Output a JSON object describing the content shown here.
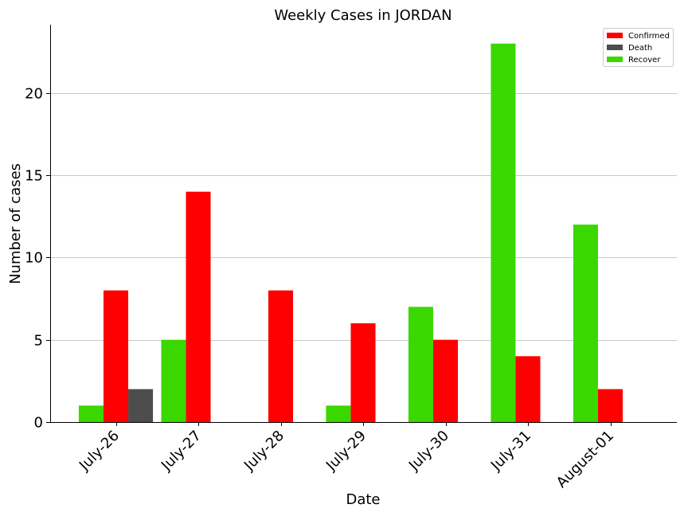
{
  "chart_data": {
    "type": "bar",
    "title": "Weekly Cases in JORDAN",
    "xlabel": "Date",
    "ylabel": "Number of cases",
    "categories": [
      "July-26",
      "July-27",
      "July-28",
      "July-29",
      "July-30",
      "July-31",
      "August-01"
    ],
    "series": [
      {
        "name": "Recover",
        "color": "#3bd800",
        "values": [
          1,
          5,
          0,
          1,
          7,
          23,
          12
        ]
      },
      {
        "name": "Confirmed",
        "color": "#ff0000",
        "values": [
          8,
          14,
          8,
          6,
          5,
          4,
          2
        ]
      },
      {
        "name": "Death",
        "color": "#4d4d4d",
        "values": [
          2,
          0,
          0,
          0,
          0,
          0,
          0
        ]
      }
    ],
    "legend_order": [
      "Confirmed",
      "Death",
      "Recover"
    ],
    "ylim": [
      0,
      24.15
    ],
    "yticks": [
      0,
      5,
      10,
      15,
      20
    ],
    "grid": "horizontal",
    "legend_position": "top-right"
  }
}
